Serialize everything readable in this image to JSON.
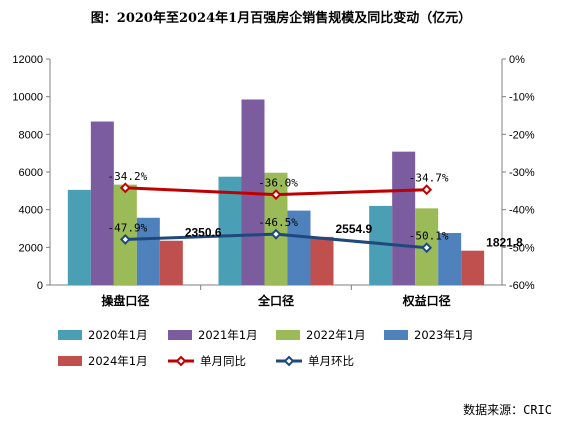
{
  "chart_data": {
    "type": "bar",
    "title": "图：2020年至2024年1月百强房企销售规模及同比变动（亿元）",
    "categories": [
      "操盘口径",
      "全口径",
      "权益口径"
    ],
    "y_left": {
      "ticks": [
        "0",
        "2000",
        "4000",
        "6000",
        "8000",
        "10000",
        "12000"
      ],
      "min": 0,
      "max": 12000
    },
    "y_right": {
      "ticks": [
        "0%",
        "-10%",
        "-20%",
        "-30%",
        "-40%",
        "-50%",
        "-60%"
      ],
      "min": -60,
      "max": 0
    },
    "series": [
      {
        "name": "2020年1月",
        "color": "#4a9fb5",
        "values": [
          5050,
          5750,
          4200
        ]
      },
      {
        "name": "2021年1月",
        "color": "#7b5c9e",
        "values": [
          8680,
          9850,
          7080
        ]
      },
      {
        "name": "2022年1月",
        "color": "#9bbb59",
        "values": [
          5330,
          5960,
          4070
        ]
      },
      {
        "name": "2023年1月",
        "color": "#4f81bd",
        "values": [
          3570,
          3950,
          2760
        ]
      },
      {
        "name": "2024年1月",
        "color": "#c0504d",
        "values": [
          2350.6,
          2554.9,
          1821.8
        ],
        "value_labels": [
          "2350.6",
          "2554.9",
          "1821.8"
        ]
      }
    ],
    "lines": [
      {
        "name": "单月同比",
        "color": "#c00000",
        "values": [
          -34.2,
          -36.0,
          -34.7
        ],
        "labels": [
          "-34.2%",
          "-36.0%",
          "-34.7%"
        ]
      },
      {
        "name": "单月环比",
        "color": "#1f497d",
        "values": [
          -47.9,
          -46.5,
          -50.1
        ],
        "labels": [
          "-47.9%",
          "-46.5%",
          "-50.1%"
        ]
      }
    ],
    "legend_position": "bottom"
  },
  "source": "数据来源：CRIC"
}
